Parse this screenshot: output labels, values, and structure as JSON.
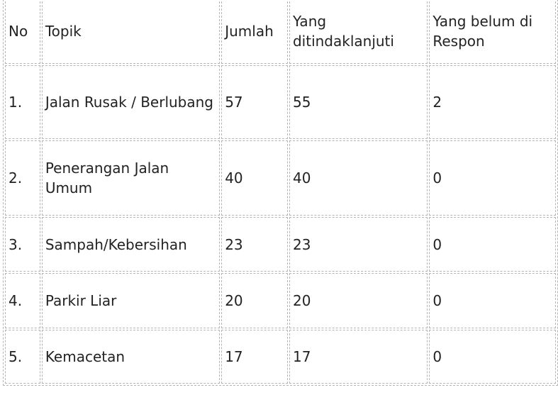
{
  "table": {
    "headers": {
      "no": "No",
      "topik": "Topik",
      "jumlah": "Jumlah",
      "ditindaklanjuti": "Yang ditindaklanjuti",
      "belum_respon": "Yang belum di Respon"
    },
    "rows": [
      {
        "no": "1.",
        "topik": "Jalan Rusak / Berlubang",
        "jumlah": "57",
        "ditindaklanjuti": "55",
        "belum_respon": "2"
      },
      {
        "no": "2.",
        "topik": "Penerangan Jalan Umum",
        "jumlah": "40",
        "ditindaklanjuti": "40",
        "belum_respon": "0"
      },
      {
        "no": "3.",
        "topik": "Sampah/Kebersihan",
        "jumlah": "23",
        "ditindaklanjuti": "23",
        "belum_respon": "0"
      },
      {
        "no": "4.",
        "topik": "Parkir Liar",
        "jumlah": "20",
        "ditindaklanjuti": "20",
        "belum_respon": "0"
      },
      {
        "no": "5.",
        "topik": "Kemacetan",
        "jumlah": "17",
        "ditindaklanjuti": "17",
        "belum_respon": "0"
      }
    ]
  }
}
